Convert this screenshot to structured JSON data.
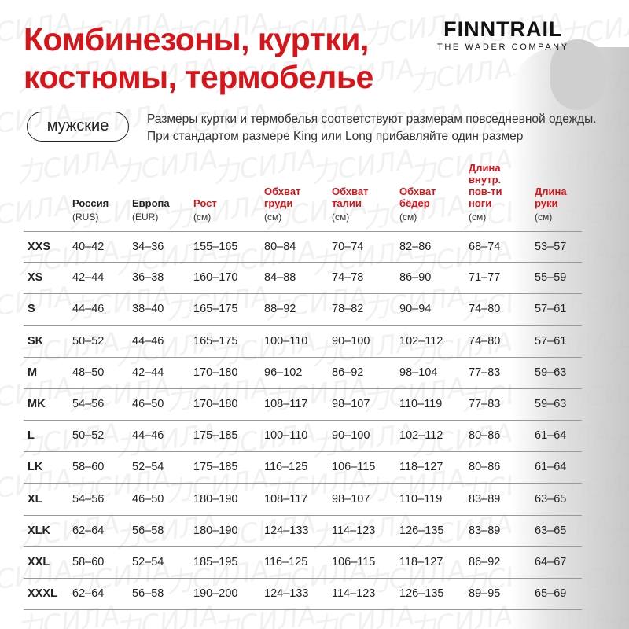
{
  "watermark": "力СИЛА",
  "title": [
    "Комбинезоны, куртки,",
    "костюмы, термобелье"
  ],
  "logo": {
    "brand": "FINNTRAIL",
    "tagline": "THE WADER COMPANY"
  },
  "category": "мужские",
  "note": "Размеры куртки и термобелья соответствуют размерам повседневной одежды. При стандартом размере King или Long прибавляйте один размер",
  "colors": {
    "accent": "#d7141a"
  },
  "columns": [
    {
      "label": "Россия",
      "unit": "(RUS)",
      "red": false
    },
    {
      "label": "Европа",
      "unit": "(EUR)",
      "red": false
    },
    {
      "label": "Рост",
      "unit": "(см)",
      "red": true
    },
    {
      "label": "Обхват груди",
      "unit": "(см)",
      "red": true
    },
    {
      "label": "Обхват талии",
      "unit": "(см)",
      "red": true
    },
    {
      "label": "Обхват бёдер",
      "unit": "(см)",
      "red": true
    },
    {
      "label": "Длина внутр. пов-ти ноги",
      "unit": "(см)",
      "red": true
    },
    {
      "label": "Длина руки",
      "unit": "(см)",
      "red": true
    }
  ],
  "rows": [
    [
      "XXS",
      "40–42",
      "34–36",
      "155–165",
      "80–84",
      "70–74",
      "82–86",
      "68–74",
      "53–57"
    ],
    [
      "XS",
      "42–44",
      "36–38",
      "160–170",
      "84–88",
      "74–78",
      "86–90",
      "71–77",
      "55–59"
    ],
    [
      "S",
      "44–46",
      "38–40",
      "165–175",
      "88–92",
      "78–82",
      "90–94",
      "74–80",
      "57–61"
    ],
    [
      "SK",
      "50–52",
      "44–46",
      "165–175",
      "100–110",
      "90–100",
      "102–112",
      "74–80",
      "57–61"
    ],
    [
      "M",
      "48–50",
      "42–44",
      "170–180",
      "96–102",
      "86–92",
      "98–104",
      "77–83",
      "59–63"
    ],
    [
      "MK",
      "54–56",
      "46–50",
      "170–180",
      "108–117",
      "98–107",
      "110–119",
      "77–83",
      "59–63"
    ],
    [
      "L",
      "50–52",
      "44–46",
      "175–185",
      "100–110",
      "90–100",
      "102–112",
      "80–86",
      "61–64"
    ],
    [
      "LK",
      "58–60",
      "52–54",
      "175–185",
      "116–125",
      "106–115",
      "118–127",
      "80–86",
      "61–64"
    ],
    [
      "XL",
      "54–56",
      "46–50",
      "180–190",
      "108–117",
      "98–107",
      "110–119",
      "83–89",
      "63–65"
    ],
    [
      "XLK",
      "62–64",
      "56–58",
      "180–190",
      "124–133",
      "114–123",
      "126–135",
      "83–89",
      "63–65"
    ],
    [
      "XXL",
      "58–60",
      "52–54",
      "185–195",
      "116–125",
      "106–115",
      "118–127",
      "86–92",
      "64–67"
    ],
    [
      "XXXL",
      "62–64",
      "56–58",
      "190–200",
      "124–133",
      "114–123",
      "126–135",
      "89–95",
      "65–69"
    ]
  ]
}
